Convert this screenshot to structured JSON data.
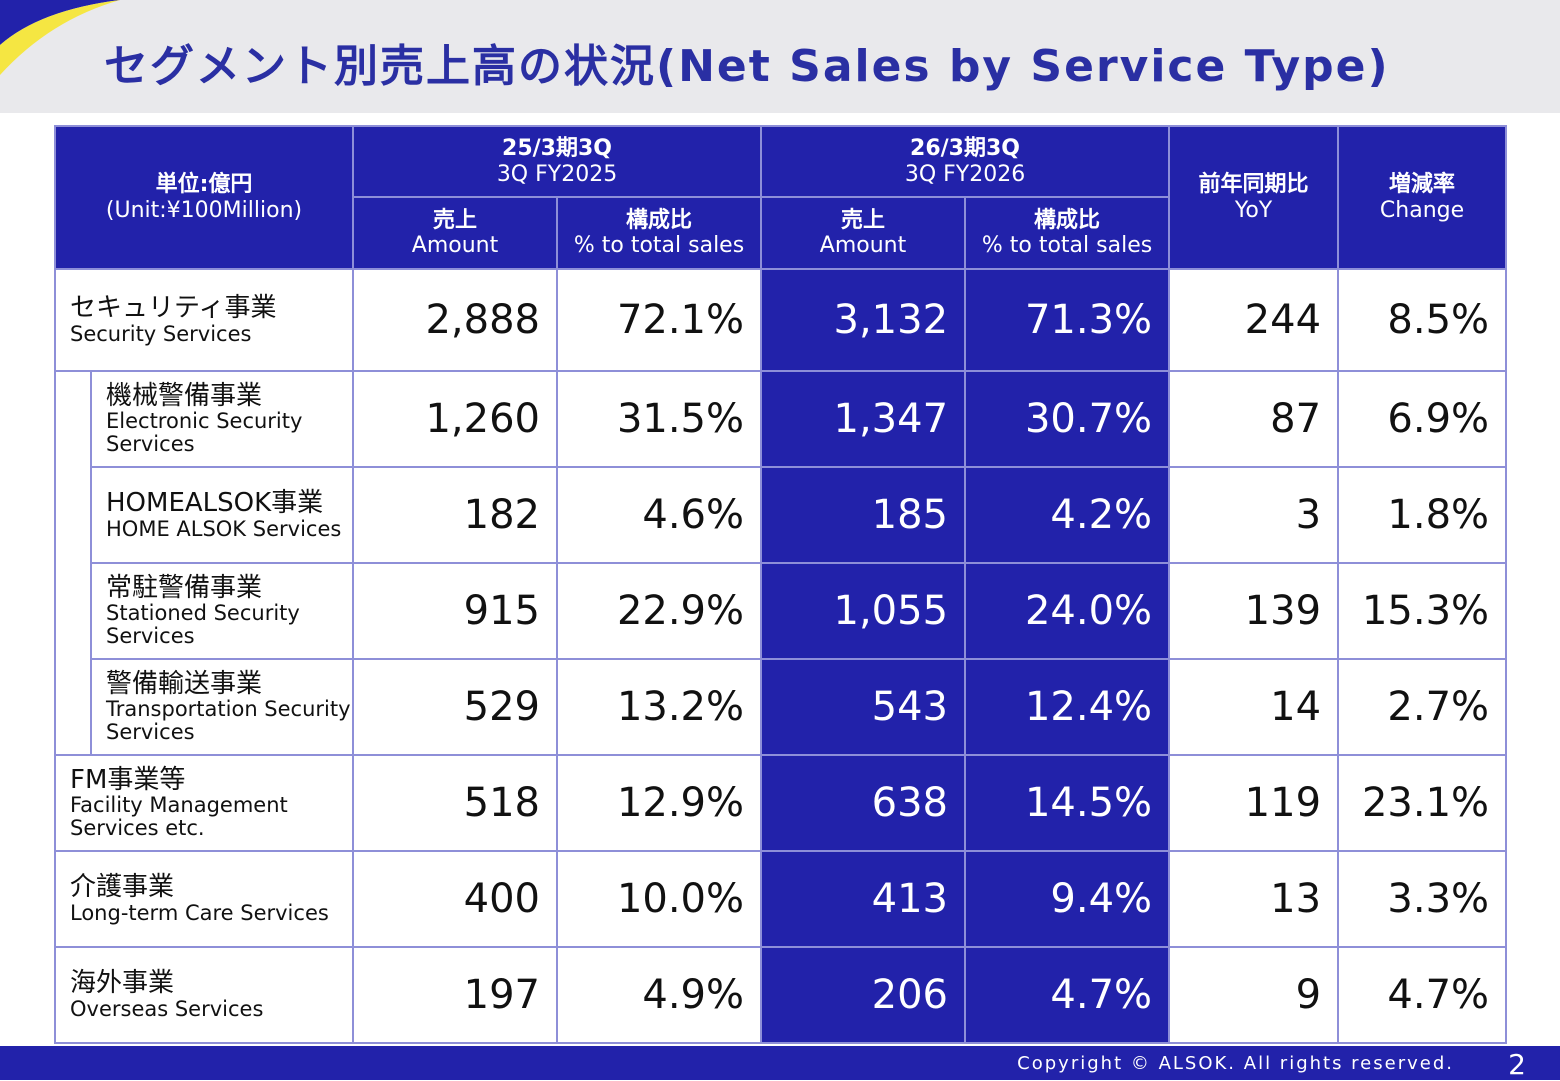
{
  "title": "セグメント別売上高の状況(Net Sales by Service Type)",
  "header": {
    "unit_jp": "単位:億円",
    "unit_en": "(Unit:¥100Million)",
    "prev_period_jp": "25/3期3Q",
    "prev_period_en": "3Q  FY2025",
    "curr_period_jp": "26/3期3Q",
    "curr_period_en": "3Q  FY2026",
    "amount_jp": "売上",
    "amount_en": "Amount",
    "ratio_jp": "構成比",
    "ratio_en": "% to total sales",
    "yoy_jp": "前年同期比",
    "yoy_en": "YoY",
    "change_jp": "増減率",
    "change_en": "Change"
  },
  "rows": [
    {
      "jp": "セキュリティ事業",
      "en": "Security Services",
      "prev_amount": "2,888",
      "prev_ratio": "72.1%",
      "curr_amount": "3,132",
      "curr_ratio": "71.3%",
      "yoy": "244",
      "change": "8.5%"
    },
    {
      "jp": "機械警備事業",
      "en": "Electronic Security Services",
      "prev_amount": "1,260",
      "prev_ratio": "31.5%",
      "curr_amount": "1,347",
      "curr_ratio": "30.7%",
      "yoy": "87",
      "change": "6.9%"
    },
    {
      "jp": "HOMEALSOK事業",
      "en": "HOME ALSOK Services",
      "prev_amount": "182",
      "prev_ratio": "4.6%",
      "curr_amount": "185",
      "curr_ratio": "4.2%",
      "yoy": "3",
      "change": "1.8%"
    },
    {
      "jp": "常駐警備事業",
      "en": "Stationed Security Services",
      "prev_amount": "915",
      "prev_ratio": "22.9%",
      "curr_amount": "1,055",
      "curr_ratio": "24.0%",
      "yoy": "139",
      "change": "15.3%"
    },
    {
      "jp": "警備輸送事業",
      "en": "Transportation Security Services",
      "prev_amount": "529",
      "prev_ratio": "13.2%",
      "curr_amount": "543",
      "curr_ratio": "12.4%",
      "yoy": "14",
      "change": "2.7%"
    },
    {
      "jp": "FM事業等",
      "en": "Facility Management Services etc.",
      "prev_amount": "518",
      "prev_ratio": "12.9%",
      "curr_amount": "638",
      "curr_ratio": "14.5%",
      "yoy": "119",
      "change": "23.1%"
    },
    {
      "jp": "介護事業",
      "en": "Long-term Care Services",
      "prev_amount": "400",
      "prev_ratio": "10.0%",
      "curr_amount": "413",
      "curr_ratio": "9.4%",
      "yoy": "13",
      "change": "3.3%"
    },
    {
      "jp": "海外事業",
      "en": "Overseas Services",
      "prev_amount": "197",
      "prev_ratio": "4.9%",
      "curr_amount": "206",
      "curr_ratio": "4.7%",
      "yoy": "9",
      "change": "4.7%"
    }
  ],
  "footer": {
    "copyright": "Copyright © ALSOK. All rights reserved.",
    "page": "2"
  },
  "colors": {
    "brand_blue": "#2222aa",
    "accent_yellow": "#f5e642",
    "band_gray": "#e9e9ec"
  }
}
